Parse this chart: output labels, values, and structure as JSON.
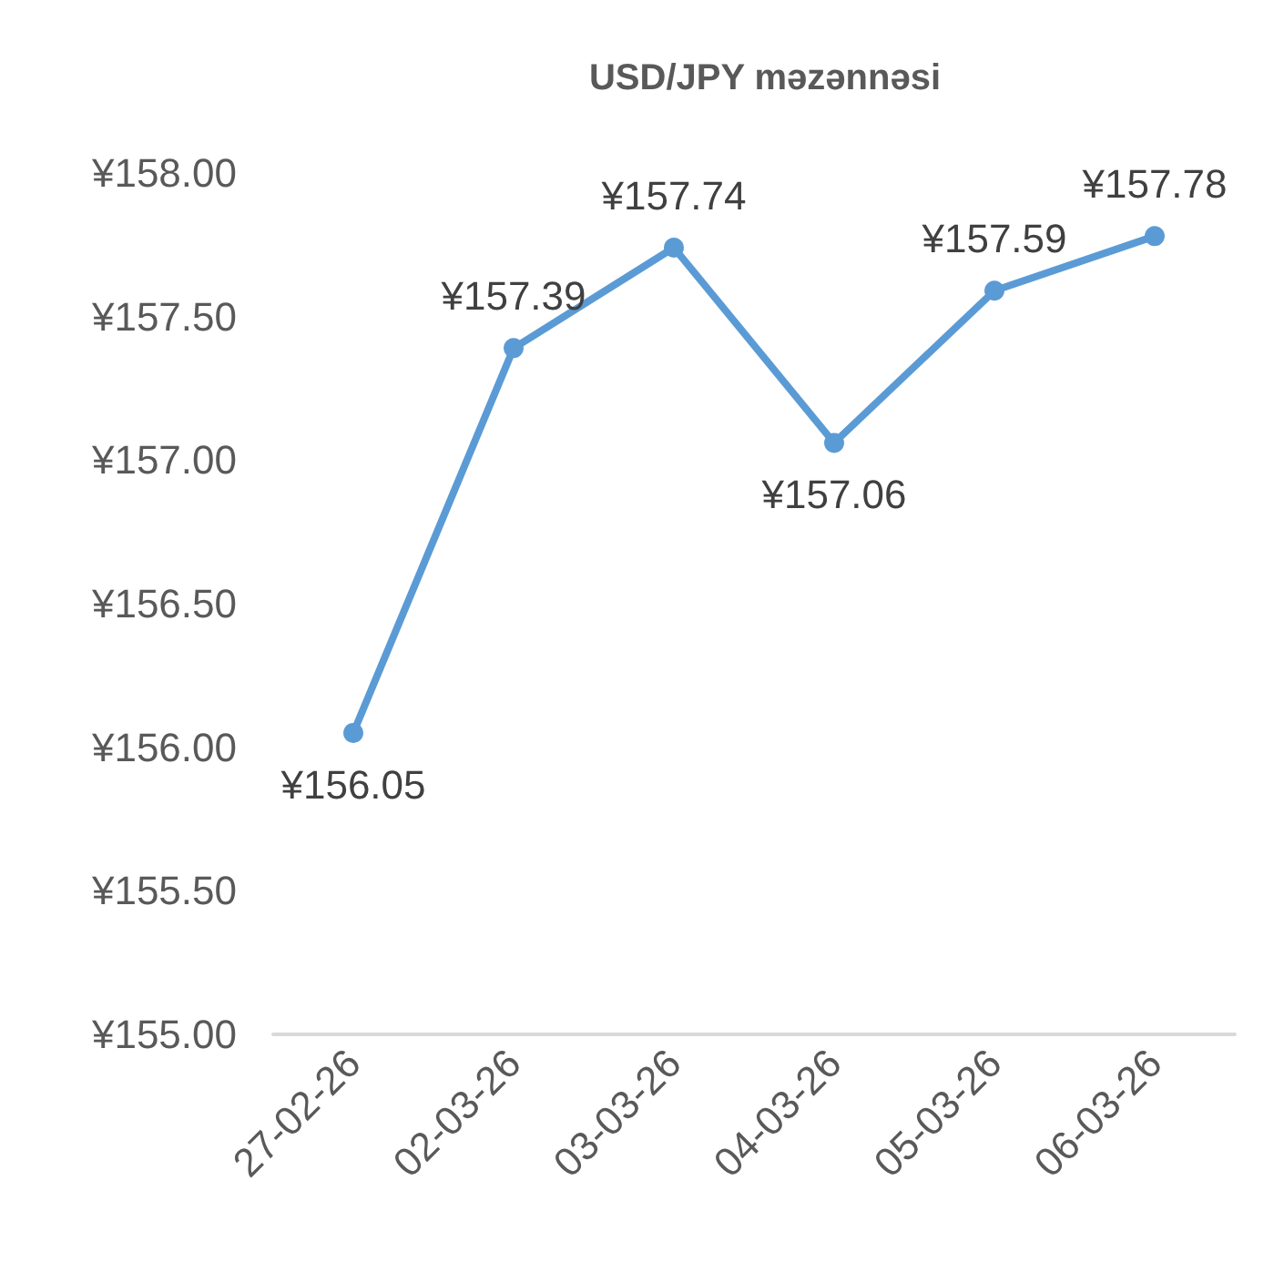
{
  "chart_data": {
    "type": "line",
    "title": "USD/JPY məzənnəsi",
    "categories": [
      "27-02-26",
      "02-03-26",
      "03-03-26",
      "04-03-26",
      "05-03-26",
      "06-03-26"
    ],
    "series": [
      {
        "color": "#5b9bd5",
        "values": [
          156.05,
          157.39,
          157.74,
          157.06,
          157.59,
          157.78
        ],
        "value_labels": [
          "¥156.05",
          "¥157.39",
          "¥157.74",
          "¥157.06",
          "¥157.59",
          "¥157.78"
        ]
      }
    ],
    "ylim": [
      155,
      158
    ],
    "yticks": [
      {
        "value": 155,
        "label": "¥155.00"
      },
      {
        "value": 155.5,
        "label": "¥155.50"
      },
      {
        "value": 156,
        "label": "¥156.00"
      },
      {
        "value": 156.5,
        "label": "¥156.50"
      },
      {
        "value": 157,
        "label": "¥157.00"
      },
      {
        "value": 157.5,
        "label": "¥157.50"
      },
      {
        "value": 158,
        "label": "¥158.00"
      }
    ],
    "grid": false,
    "marker": "circle",
    "line_style": "solid"
  }
}
